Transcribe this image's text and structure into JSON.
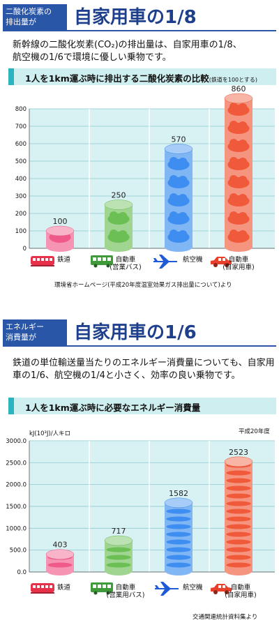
{
  "sections": [
    {
      "header_box": [
        "二酸化炭素の",
        "排出量が"
      ],
      "header_title": "自家用車の1/8",
      "description": [
        "新幹線の二酸化炭素(CO₂)の排出量は、自家用車の1/8、",
        "航空機の1/6で環境に優しい乗物です。"
      ],
      "chart_heading": "1人を1km運ぶ時に排出する二酸化炭素の比較",
      "chart_heading_note": "(鉄道を100とする)",
      "source": "環境省ホームページ(平成20年度温室効果ガス排出量について)より"
    },
    {
      "header_box": [
        "エネルギー",
        "消費量が"
      ],
      "header_title": "自家用車の1/6",
      "description": [
        "鉄道の単位輸送量当たりのエネルギー消費量についても、自家用車の1/6、航空機の1/4と小さく、効率の良い乗物です。"
      ],
      "chart_heading": "1人を1km運ぶ時に必要なエネルギー消費量",
      "unit_label": "kJ(10³J)/人キロ",
      "year_label": "平成20年度",
      "source": "交通関連統計資料集より"
    }
  ],
  "categories": [
    {
      "label": "鉄道",
      "icon": "train-icon",
      "color": "#e8304a"
    },
    {
      "label": "自動車\n(営業バス)",
      "icon": "bus-icon",
      "color": "#3f9a3a"
    },
    {
      "label": "航空機",
      "icon": "airplane-icon",
      "color": "#1f5bd6"
    },
    {
      "label": "自動車\n(自家用車)",
      "icon": "car-icon",
      "color": "#e8402a"
    }
  ],
  "chart_data": [
    {
      "type": "bar",
      "title": "1人を1km運ぶ時に排出する二酸化炭素の比較",
      "categories": [
        "鉄道",
        "自動車(営業バス)",
        "航空機",
        "自動車(自家用車)"
      ],
      "values": [
        100,
        250,
        570,
        860
      ],
      "value_labels": [
        "100",
        "250",
        "570",
        "860"
      ],
      "ylim": [
        0,
        800
      ],
      "yticks": [
        0,
        100,
        200,
        300,
        400,
        500,
        600,
        700,
        800
      ],
      "ytick_labels": [
        "0",
        "100",
        "200",
        "300",
        "400",
        "500",
        "600",
        "700",
        "800"
      ],
      "colors": [
        "#f05a8a",
        "#6bbf55",
        "#3d8ef0",
        "#f05a3a"
      ],
      "grid": true
    },
    {
      "type": "bar",
      "title": "1人を1km運ぶ時に必要なエネルギー消費量",
      "ylabel": "kJ(10³J)/人キロ",
      "categories": [
        "鉄道",
        "自動車(営業用バス)",
        "航空機",
        "自動車(自家用車)"
      ],
      "values": [
        403,
        717,
        1582,
        2523
      ],
      "value_labels": [
        "403",
        "717",
        "1582",
        "2523"
      ],
      "ylim": [
        0,
        3000
      ],
      "yticks": [
        0,
        500,
        1000,
        1500,
        2000,
        2500,
        3000
      ],
      "ytick_labels": [
        "0.0",
        "500.0",
        "1000.0",
        "1500.0",
        "2000.0",
        "2500.0",
        "3000.0"
      ],
      "colors": [
        "#f05a8a",
        "#6bbf55",
        "#3d8ef0",
        "#f05a3a"
      ],
      "grid": true
    }
  ],
  "bottom_categories": [
    "鉄道",
    "自動車\n(営業用バス)",
    "航空機",
    "自動車\n(自家用車)"
  ]
}
